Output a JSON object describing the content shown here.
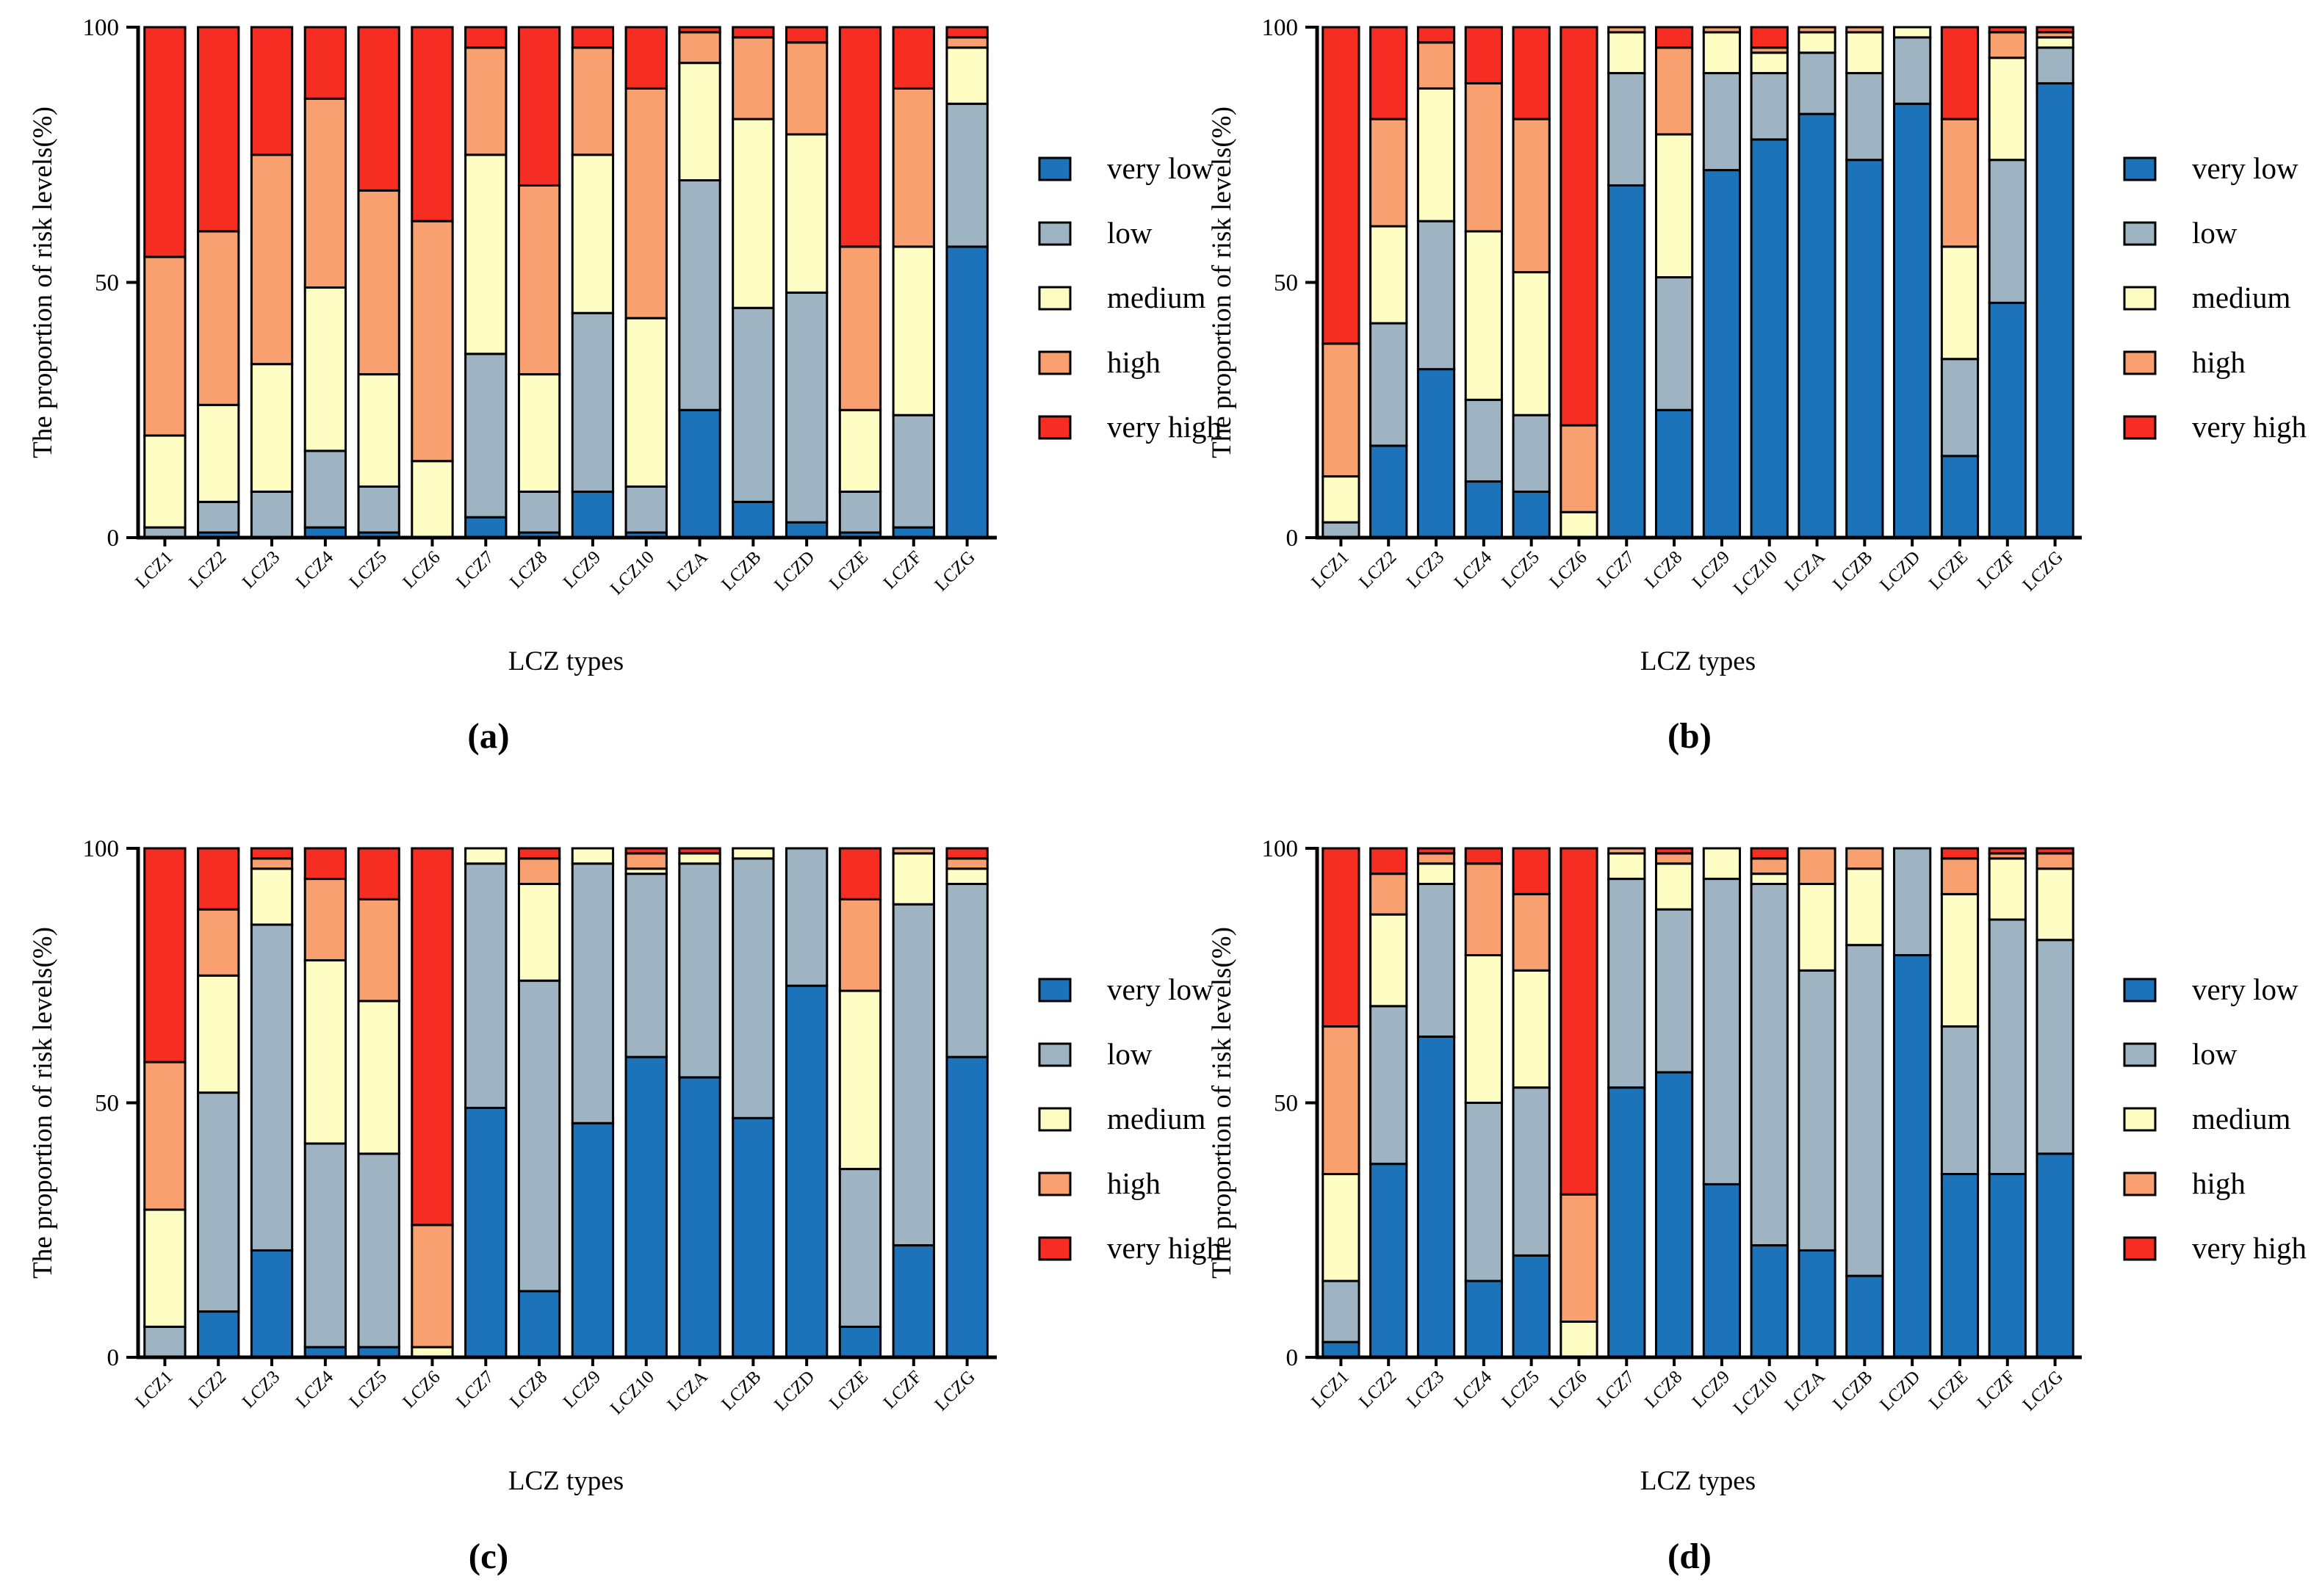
{
  "colors": {
    "very low": "#1d73ba",
    "low": "#9fb4c2",
    "medium": "#fdfdc4",
    "high": "#f8a070",
    "very high": "#f52d22"
  },
  "chart_data": [
    {
      "type": "bar",
      "stacked": true,
      "panel_label": "(a)",
      "xlabel": "LCZ types",
      "ylabel": "The proportion of risk levels(%)",
      "ylim": [
        0,
        100
      ],
      "yticks": [
        "0",
        "50",
        "100"
      ],
      "legend_position": "right",
      "categories": [
        "LCZ1",
        "LCZ2",
        "LCZ3",
        "LCZ4",
        "LCZ5",
        "LCZ6",
        "LCZ7",
        "LCZ8",
        "LCZ9",
        "LCZ10",
        "LCZA",
        "LCZB",
        "LCZD",
        "LCZE",
        "LCZF",
        "LCZG"
      ],
      "series": [
        {
          "name": "very low",
          "values": [
            0,
            1,
            0,
            2,
            1,
            0,
            4,
            1,
            9,
            1,
            25,
            7,
            3,
            1,
            2,
            57
          ]
        },
        {
          "name": "low",
          "values": [
            2,
            6,
            9,
            15,
            9,
            0,
            32,
            8,
            35,
            9,
            45,
            38,
            45,
            8,
            22,
            28
          ]
        },
        {
          "name": "medium",
          "values": [
            18,
            19,
            25,
            32,
            22,
            15,
            39,
            23,
            31,
            33,
            23,
            37,
            31,
            16,
            33,
            11
          ]
        },
        {
          "name": "high",
          "values": [
            35,
            34,
            41,
            37,
            36,
            47,
            21,
            37,
            21,
            45,
            6,
            16,
            18,
            32,
            31,
            2
          ]
        },
        {
          "name": "very high",
          "values": [
            45,
            40,
            25,
            14,
            32,
            38,
            4,
            31,
            4,
            12,
            1,
            2,
            3,
            43,
            12,
            2
          ]
        }
      ]
    },
    {
      "type": "bar",
      "stacked": true,
      "panel_label": "(b)",
      "xlabel": "LCZ types",
      "ylabel": "The proportion of risk levels(%)",
      "ylim": [
        0,
        100
      ],
      "yticks": [
        "0",
        "50",
        "100"
      ],
      "legend_position": "right",
      "categories": [
        "LCZ1",
        "LCZ2",
        "LCZ3",
        "LCZ4",
        "LCZ5",
        "LCZ6",
        "LCZ7",
        "LCZ8",
        "LCZ9",
        "LCZ10",
        "LCZA",
        "LCZB",
        "LCZD",
        "LCZE",
        "LCZF",
        "LCZG"
      ],
      "series": [
        {
          "name": "very low",
          "values": [
            0,
            18,
            33,
            11,
            9,
            0,
            69,
            25,
            72,
            78,
            83,
            74,
            85,
            16,
            46,
            89
          ]
        },
        {
          "name": "low",
          "values": [
            3,
            24,
            29,
            16,
            15,
            0,
            22,
            26,
            19,
            13,
            12,
            17,
            13,
            19,
            28,
            7
          ]
        },
        {
          "name": "medium",
          "values": [
            9,
            19,
            26,
            33,
            28,
            5,
            8,
            28,
            8,
            4,
            4,
            8,
            2,
            22,
            20,
            2
          ]
        },
        {
          "name": "high",
          "values": [
            26,
            21,
            9,
            29,
            30,
            17,
            1,
            17,
            1,
            1,
            1,
            1,
            0,
            25,
            5,
            1
          ]
        },
        {
          "name": "very high",
          "values": [
            62,
            18,
            3,
            11,
            18,
            78,
            0,
            4,
            0,
            4,
            0,
            0,
            0,
            18,
            1,
            1
          ]
        }
      ]
    },
    {
      "type": "bar",
      "stacked": true,
      "panel_label": "(c)",
      "xlabel": "LCZ types",
      "ylabel": "The proportion of risk levels(%)",
      "ylim": [
        0,
        100
      ],
      "yticks": [
        "0",
        "50",
        "100"
      ],
      "legend_position": "right",
      "categories": [
        "LCZ1",
        "LCZ2",
        "LCZ3",
        "LCZ4",
        "LCZ5",
        "LCZ6",
        "LCZ7",
        "LCZ8",
        "LCZ9",
        "LCZ10",
        "LCZA",
        "LCZB",
        "LCZD",
        "LCZE",
        "LCZF",
        "LCZG"
      ],
      "series": [
        {
          "name": "very low",
          "values": [
            0,
            9,
            21,
            2,
            2,
            0,
            49,
            13,
            46,
            59,
            55,
            47,
            73,
            6,
            22,
            59
          ]
        },
        {
          "name": "low",
          "values": [
            6,
            43,
            64,
            40,
            38,
            0,
            48,
            61,
            51,
            36,
            42,
            51,
            27,
            31,
            67,
            34
          ]
        },
        {
          "name": "medium",
          "values": [
            23,
            23,
            11,
            36,
            30,
            2,
            3,
            19,
            3,
            1,
            2,
            2,
            0,
            35,
            10,
            3
          ]
        },
        {
          "name": "high",
          "values": [
            29,
            13,
            2,
            16,
            20,
            24,
            0,
            5,
            0,
            3,
            0,
            0,
            0,
            18,
            1,
            2
          ]
        },
        {
          "name": "very high",
          "values": [
            42,
            12,
            2,
            6,
            10,
            74,
            0,
            2,
            0,
            1,
            1,
            0,
            0,
            10,
            0,
            2
          ]
        }
      ]
    },
    {
      "type": "bar",
      "stacked": true,
      "panel_label": "(d)",
      "xlabel": "LCZ types",
      "ylabel": "The proportion of risk levels(%)",
      "ylim": [
        0,
        100
      ],
      "yticks": [
        "0",
        "50",
        "100"
      ],
      "legend_position": "right",
      "categories": [
        "LCZ1",
        "LCZ2",
        "LCZ3",
        "LCZ4",
        "LCZ5",
        "LCZ6",
        "LCZ7",
        "LCZ8",
        "LCZ9",
        "LCZ10",
        "LCZA",
        "LCZB",
        "LCZD",
        "LCZE",
        "LCZF",
        "LCZG"
      ],
      "series": [
        {
          "name": "very low",
          "values": [
            3,
            38,
            63,
            15,
            20,
            0,
            53,
            56,
            34,
            22,
            21,
            16,
            79,
            36,
            36,
            40
          ]
        },
        {
          "name": "low",
          "values": [
            12,
            31,
            30,
            35,
            33,
            0,
            41,
            32,
            60,
            71,
            55,
            65,
            21,
            29,
            50,
            42
          ]
        },
        {
          "name": "medium",
          "values": [
            21,
            18,
            4,
            29,
            23,
            7,
            5,
            9,
            6,
            2,
            17,
            15,
            0,
            26,
            12,
            14
          ]
        },
        {
          "name": "high",
          "values": [
            29,
            8,
            2,
            18,
            15,
            25,
            1,
            2,
            0,
            3,
            7,
            4,
            0,
            7,
            1,
            3
          ]
        },
        {
          "name": "very high",
          "values": [
            35,
            5,
            1,
            3,
            9,
            68,
            0,
            1,
            0,
            2,
            0,
            0,
            0,
            2,
            1,
            1
          ]
        }
      ]
    }
  ]
}
